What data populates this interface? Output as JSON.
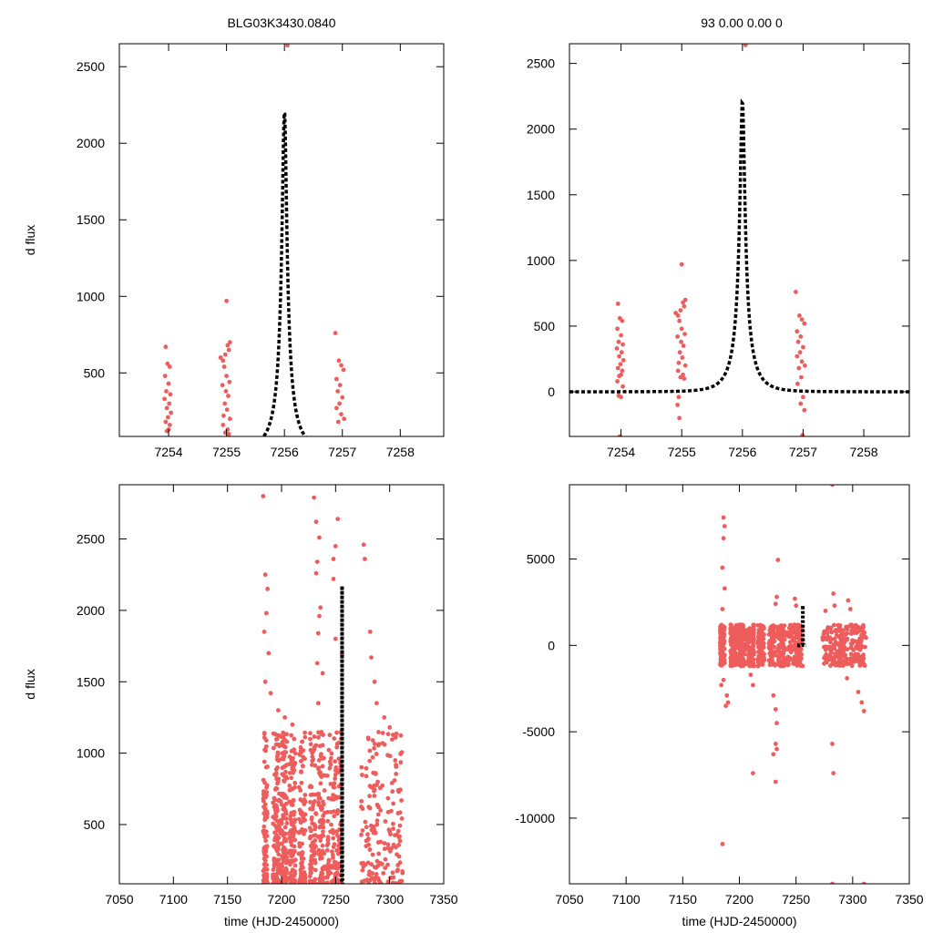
{
  "titles": {
    "left": "BLG03K3430.0840",
    "right": "93  0.00  0.00  0"
  },
  "colors": {
    "data_points": "#ee5c5c",
    "model_curve": "#000000",
    "frame": "#000000"
  },
  "chart_data": [
    {
      "id": "top-left",
      "type": "scatter",
      "title": "BLG03K3430.0840",
      "xlabel": "",
      "ylabel": "d flux",
      "xlim": [
        7253.15,
        7258.75
      ],
      "ylim": [
        85,
        2650
      ],
      "xticks": [
        7254,
        7255,
        7256,
        7257,
        7258
      ],
      "yticks": [
        500,
        1000,
        1500,
        2000,
        2500
      ],
      "model": {
        "t0": 7256.0,
        "baseline": 0,
        "amplitude": 2220,
        "tau": 0.33,
        "u0": 0.12
      },
      "series": [
        {
          "values": [
            [
              7253.95,
              670
            ],
            [
              7253.98,
              560
            ],
            [
              7254.02,
              540
            ],
            [
              7253.94,
              480
            ],
            [
              7254.0,
              430
            ],
            [
              7253.96,
              380
            ],
            [
              7254.03,
              360
            ],
            [
              7253.93,
              330
            ],
            [
              7254.01,
              300
            ],
            [
              7253.97,
              270
            ],
            [
              7254.04,
              240
            ],
            [
              7253.99,
              210
            ],
            [
              7253.95,
              180
            ],
            [
              7254.02,
              160
            ],
            [
              7254.0,
              130
            ],
            [
              7253.97,
              120
            ],
            [
              7254.9,
              600
            ],
            [
              7254.94,
              580
            ],
            [
              7254.98,
              620
            ],
            [
              7255.02,
              680
            ],
            [
              7255.06,
              700
            ],
            [
              7255.04,
              650
            ],
            [
              7254.96,
              540
            ],
            [
              7255.0,
              480
            ],
            [
              7255.05,
              440
            ],
            [
              7254.93,
              420
            ],
            [
              7254.99,
              380
            ],
            [
              7255.03,
              350
            ],
            [
              7254.97,
              300
            ],
            [
              7255.01,
              260
            ],
            [
              7254.95,
              220
            ],
            [
              7255.06,
              200
            ],
            [
              7254.94,
              160
            ],
            [
              7255.02,
              130
            ],
            [
              7254.98,
              110
            ],
            [
              7255.04,
              100
            ],
            [
              7255.0,
              970
            ],
            [
              7256.05,
              2640
            ],
            [
              7256.88,
              760
            ],
            [
              7256.94,
              580
            ],
            [
              7256.98,
              550
            ],
            [
              7257.02,
              520
            ],
            [
              7256.9,
              460
            ],
            [
              7256.96,
              420
            ],
            [
              7256.92,
              380
            ],
            [
              7257.0,
              340
            ],
            [
              7256.95,
              300
            ],
            [
              7256.9,
              270
            ],
            [
              7256.98,
              230
            ],
            [
              7257.03,
              200
            ],
            [
              7256.93,
              180
            ]
          ]
        }
      ]
    },
    {
      "id": "top-right",
      "type": "scatter",
      "title": "93  0.00  0.00  0",
      "xlabel": "",
      "ylabel": "",
      "xlim": [
        7253.15,
        7258.75
      ],
      "ylim": [
        -340,
        2650
      ],
      "xticks": [
        7254,
        7255,
        7256,
        7257,
        7258
      ],
      "yticks": [
        0,
        500,
        1000,
        1500,
        2000,
        2500
      ],
      "model": {
        "t0": 7256.0,
        "baseline": 0,
        "amplitude": 2220,
        "tau": 0.33,
        "u0": 0.12
      },
      "series": [
        {
          "values": [
            [
              7253.95,
              670
            ],
            [
              7253.98,
              560
            ],
            [
              7254.02,
              540
            ],
            [
              7253.94,
              480
            ],
            [
              7254.0,
              430
            ],
            [
              7253.96,
              380
            ],
            [
              7254.03,
              360
            ],
            [
              7253.93,
              330
            ],
            [
              7254.01,
              300
            ],
            [
              7253.97,
              270
            ],
            [
              7254.04,
              240
            ],
            [
              7253.99,
              210
            ],
            [
              7253.95,
              180
            ],
            [
              7254.02,
              160
            ],
            [
              7254.0,
              130
            ],
            [
              7253.97,
              120
            ],
            [
              7253.94,
              80
            ],
            [
              7254.03,
              40
            ],
            [
              7253.96,
              -30
            ],
            [
              7254.0,
              -40
            ],
            [
              7253.98,
              -340
            ],
            [
              7254.9,
              600
            ],
            [
              7254.94,
              580
            ],
            [
              7254.98,
              620
            ],
            [
              7255.02,
              680
            ],
            [
              7255.06,
              700
            ],
            [
              7255.04,
              650
            ],
            [
              7254.96,
              540
            ],
            [
              7255.0,
              480
            ],
            [
              7255.05,
              440
            ],
            [
              7254.93,
              420
            ],
            [
              7254.99,
              380
            ],
            [
              7255.03,
              350
            ],
            [
              7254.97,
              300
            ],
            [
              7255.01,
              260
            ],
            [
              7254.95,
              220
            ],
            [
              7255.06,
              200
            ],
            [
              7254.94,
              160
            ],
            [
              7255.02,
              130
            ],
            [
              7254.98,
              110
            ],
            [
              7255.04,
              100
            ],
            [
              7255.0,
              970
            ],
            [
              7254.95,
              -40
            ],
            [
              7254.93,
              -100
            ],
            [
              7254.96,
              -200
            ],
            [
              7256.05,
              2640
            ],
            [
              7256.88,
              760
            ],
            [
              7256.94,
              580
            ],
            [
              7256.98,
              550
            ],
            [
              7257.02,
              520
            ],
            [
              7256.9,
              460
            ],
            [
              7256.96,
              420
            ],
            [
              7256.92,
              380
            ],
            [
              7257.0,
              340
            ],
            [
              7256.95,
              300
            ],
            [
              7256.9,
              270
            ],
            [
              7256.98,
              230
            ],
            [
              7257.03,
              200
            ],
            [
              7256.93,
              180
            ],
            [
              7256.97,
              110
            ],
            [
              7256.91,
              60
            ],
            [
              7257.0,
              -40
            ],
            [
              7256.96,
              -90
            ],
            [
              7257.02,
              -140
            ],
            [
              7256.99,
              -330
            ]
          ]
        }
      ]
    },
    {
      "id": "bottom-left",
      "type": "scatter",
      "title": "",
      "xlabel": "time (HJD-2450000)",
      "ylabel": "d flux",
      "xlim": [
        7050,
        7350
      ],
      "ylim": [
        85,
        2880
      ],
      "xticks": [
        7050,
        7100,
        7150,
        7200,
        7250,
        7300,
        7350
      ],
      "yticks": [
        500,
        1000,
        1500,
        2000,
        2500
      ],
      "model": {
        "t0": 7256.0,
        "baseline": 0,
        "amplitude": 2220,
        "tau": 0.33,
        "u0": 0.12
      },
      "generated": {
        "seed": 11,
        "clusters": [
          [
            7183,
            7187,
            90
          ],
          [
            7192,
            7198,
            110
          ],
          [
            7199,
            7205,
            120
          ],
          [
            7207,
            7213,
            100
          ],
          [
            7216,
            7222,
            90
          ],
          [
            7226,
            7232,
            80
          ],
          [
            7234,
            7240,
            90
          ],
          [
            7242,
            7256,
            130
          ],
          [
            7273,
            7296,
            110
          ],
          [
            7298,
            7312,
            70
          ]
        ],
        "ymin": 85,
        "ymax": 1150
      },
      "series": [
        {
          "values": [
            [
              7183,
              2800
            ],
            [
              7185,
              2250
            ],
            [
              7187,
              2150
            ],
            [
              7186,
              1980
            ],
            [
              7184,
              1850
            ],
            [
              7188,
              1700
            ],
            [
              7185,
              1500
            ],
            [
              7190,
              1420
            ],
            [
              7197,
              1300
            ],
            [
              7203,
              1250
            ],
            [
              7210,
              1200
            ],
            [
              7230,
              2790
            ],
            [
              7232,
              2620
            ],
            [
              7235,
              2510
            ],
            [
              7233,
              2340
            ],
            [
              7232,
              2260
            ],
            [
              7236,
              2020
            ],
            [
              7235,
              1960
            ],
            [
              7234,
              1840
            ],
            [
              7233,
              1630
            ],
            [
              7238,
              1560
            ],
            [
              7234,
              1350
            ],
            [
              7252,
              2640
            ],
            [
              7250,
              2450
            ],
            [
              7248,
              2360
            ],
            [
              7248,
              2220
            ],
            [
              7250,
              1800
            ],
            [
              7256,
              1690
            ],
            [
              7276,
              2460
            ],
            [
              7277,
              2360
            ],
            [
              7282,
              1850
            ],
            [
              7283,
              1670
            ],
            [
              7286,
              1500
            ],
            [
              7288,
              1350
            ],
            [
              7295,
              1250
            ],
            [
              7300,
              1180
            ]
          ]
        }
      ]
    },
    {
      "id": "bottom-right",
      "type": "scatter",
      "title": "",
      "xlabel": "time (HJD-2450000)",
      "ylabel": "",
      "xlim": [
        7050,
        7350
      ],
      "ylim": [
        -13800,
        9300
      ],
      "xticks": [
        7050,
        7100,
        7150,
        7200,
        7250,
        7300,
        7350
      ],
      "yticks": [
        -10000,
        -5000,
        0,
        5000
      ],
      "model": {
        "t0": 7256.0,
        "baseline": 0,
        "amplitude": 2220,
        "tau": 0.33,
        "u0": 0.12
      },
      "generated": {
        "seed": 23,
        "clusters": [
          [
            7183,
            7187,
            110
          ],
          [
            7192,
            7198,
            120
          ],
          [
            7199,
            7205,
            120
          ],
          [
            7207,
            7213,
            100
          ],
          [
            7216,
            7222,
            90
          ],
          [
            7226,
            7232,
            80
          ],
          [
            7234,
            7240,
            90
          ],
          [
            7242,
            7256,
            130
          ],
          [
            7273,
            7296,
            150
          ],
          [
            7298,
            7312,
            110
          ]
        ],
        "ymin": -1200,
        "ymax": 1200
      },
      "series": [
        {
          "values": [
            [
              7282,
              9300
            ],
            [
              7186,
              7400
            ],
            [
              7187,
              6900
            ],
            [
              7186,
              6200
            ],
            [
              7185,
              4500
            ],
            [
              7187,
              3300
            ],
            [
              7185,
              2100
            ],
            [
              7234,
              4950
            ],
            [
              7233,
              2800
            ],
            [
              7232,
              2400
            ],
            [
              7249,
              2700
            ],
            [
              7250,
              2300
            ],
            [
              7283,
              3000
            ],
            [
              7284,
              2300
            ],
            [
              7296,
              2600
            ],
            [
              7298,
              2100
            ],
            [
              7276,
              2000
            ],
            [
              7186,
              -2000
            ],
            [
              7184,
              -2300
            ],
            [
              7189,
              -2900
            ],
            [
              7190,
              -3300
            ],
            [
              7188,
              -3500
            ],
            [
              7210,
              -1700
            ],
            [
              7212,
              -2300
            ],
            [
              7230,
              -2900
            ],
            [
              7232,
              -3700
            ],
            [
              7233,
              -4500
            ],
            [
              7232,
              -5700
            ],
            [
              7233,
              -6000
            ],
            [
              7230,
              -6300
            ],
            [
              7232,
              -7900
            ],
            [
              7212,
              -7400
            ],
            [
              7185,
              -11500
            ],
            [
              7282,
              -5700
            ],
            [
              7283,
              -7400
            ],
            [
              7282,
              -13800
            ],
            [
              7308,
              -3300
            ],
            [
              7310,
              -3800
            ],
            [
              7305,
              -2700
            ],
            [
              7295,
              -1900
            ],
            [
              7310,
              -13800
            ]
          ]
        }
      ]
    }
  ]
}
